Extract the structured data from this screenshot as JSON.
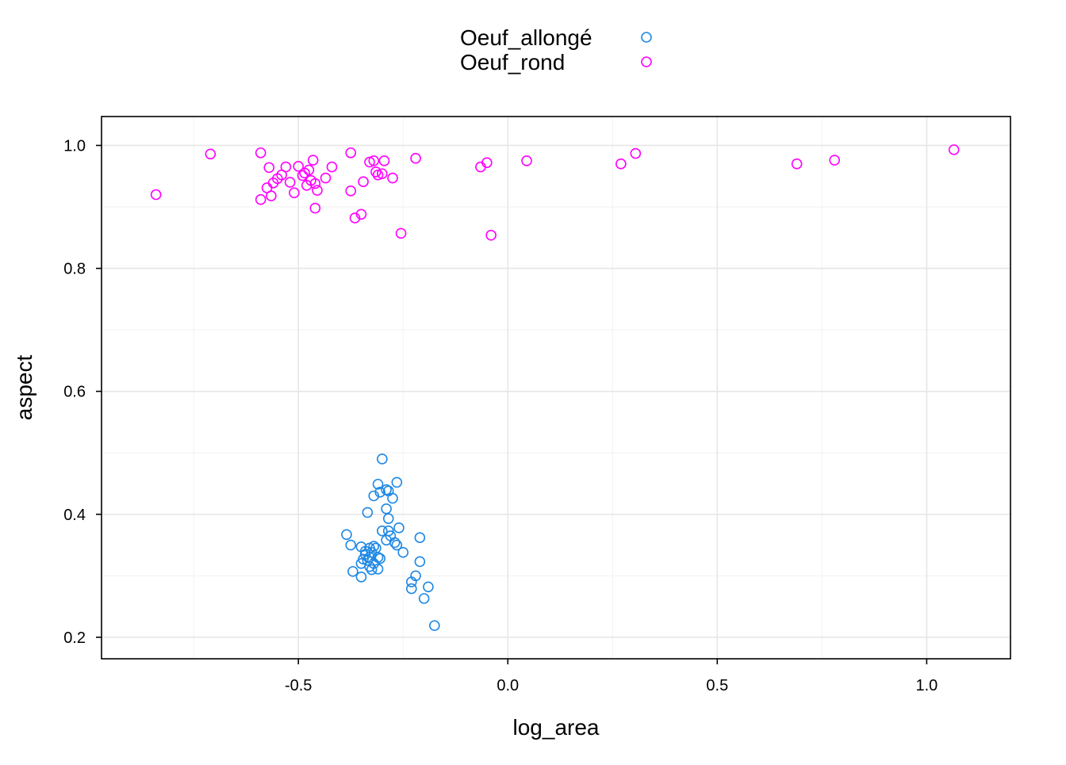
{
  "chart_data": {
    "type": "scatter",
    "xlabel": "log_area",
    "ylabel": "aspect",
    "xlim": [
      -0.97,
      1.2
    ],
    "ylim": [
      0.165,
      1.047
    ],
    "x_ticks": [
      -0.5,
      0.0,
      0.5,
      1.0
    ],
    "x_tick_labels": [
      "-0.5",
      "0.0",
      "0.5",
      "1.0"
    ],
    "y_ticks": [
      0.2,
      0.4,
      0.6,
      0.8,
      1.0
    ],
    "y_tick_labels": [
      "0.2",
      "0.4",
      "0.6",
      "0.8",
      "1.0"
    ],
    "grid": true,
    "legend_position": "top",
    "series": [
      {
        "name": "Oeuf_allongé",
        "color": "#1E88E5",
        "x": [
          -0.3,
          -0.265,
          -0.31,
          -0.29,
          -0.285,
          -0.32,
          -0.305,
          -0.275,
          -0.335,
          -0.29,
          -0.285,
          -0.26,
          -0.3,
          -0.285,
          -0.28,
          -0.29,
          -0.27,
          -0.265,
          -0.21,
          -0.385,
          -0.375,
          -0.35,
          -0.33,
          -0.32,
          -0.315,
          -0.325,
          -0.34,
          -0.31,
          -0.33,
          -0.345,
          -0.35,
          -0.32,
          -0.335,
          -0.25,
          -0.31,
          -0.21,
          -0.34,
          -0.325,
          -0.37,
          -0.305,
          -0.22,
          -0.35,
          -0.23,
          -0.23,
          -0.19,
          -0.2,
          -0.175,
          -0.33
        ],
        "y": [
          0.49,
          0.452,
          0.449,
          0.44,
          0.438,
          0.43,
          0.436,
          0.426,
          0.403,
          0.409,
          0.393,
          0.378,
          0.373,
          0.373,
          0.365,
          0.358,
          0.354,
          0.35,
          0.362,
          0.367,
          0.35,
          0.347,
          0.345,
          0.348,
          0.345,
          0.338,
          0.34,
          0.33,
          0.33,
          0.327,
          0.32,
          0.32,
          0.325,
          0.338,
          0.311,
          0.323,
          0.335,
          0.31,
          0.307,
          0.328,
          0.3,
          0.298,
          0.29,
          0.279,
          0.282,
          0.263,
          0.219,
          0.315
        ]
      },
      {
        "name": "Oeuf_rond",
        "color": "#FF00FF",
        "x": [
          -0.84,
          -0.71,
          -0.59,
          -0.565,
          -0.575,
          -0.59,
          -0.57,
          -0.55,
          -0.56,
          -0.54,
          -0.53,
          -0.52,
          -0.51,
          -0.5,
          -0.49,
          -0.48,
          -0.475,
          -0.47,
          -0.465,
          -0.46,
          -0.455,
          -0.46,
          -0.435,
          -0.42,
          -0.375,
          -0.375,
          -0.365,
          -0.35,
          -0.345,
          -0.33,
          -0.32,
          -0.315,
          -0.31,
          -0.3,
          -0.295,
          -0.275,
          -0.255,
          -0.22,
          -0.065,
          -0.05,
          -0.04,
          0.045,
          0.27,
          0.305,
          0.69,
          0.78,
          1.065,
          -0.485
        ],
        "y": [
          0.92,
          0.986,
          0.912,
          0.918,
          0.931,
          0.988,
          0.964,
          0.946,
          0.939,
          0.952,
          0.965,
          0.94,
          0.923,
          0.966,
          0.951,
          0.935,
          0.96,
          0.943,
          0.976,
          0.938,
          0.927,
          0.898,
          0.947,
          0.965,
          0.926,
          0.988,
          0.882,
          0.888,
          0.941,
          0.973,
          0.975,
          0.957,
          0.952,
          0.954,
          0.975,
          0.947,
          0.857,
          0.979,
          0.965,
          0.972,
          0.854,
          0.975,
          0.97,
          0.987,
          0.97,
          0.976,
          0.993,
          0.955
        ]
      }
    ]
  }
}
